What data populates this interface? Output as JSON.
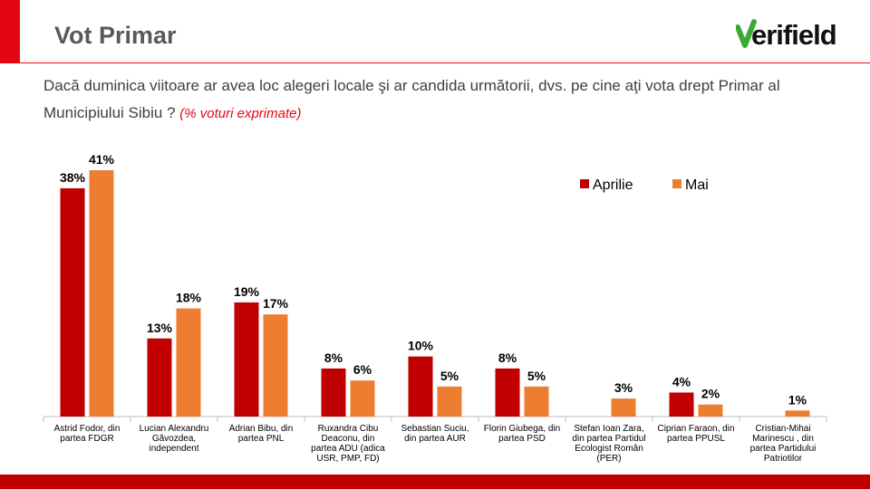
{
  "page": {
    "title": "Vot Primar",
    "question_text": "Dacă duminica viitoare ar avea loc alegeri locale şi ar candida următorii, dvs. pe cine aţi vota drept Primar al Municipiului Sibiu ?",
    "question_note": "(% voturi exprimate)"
  },
  "logo": {
    "text": "verifield",
    "color": "#111111",
    "accent": "#3aaa35"
  },
  "colors": {
    "accent": "#e30613",
    "bottom_bar": "#c00000"
  },
  "chart_data": {
    "type": "bar",
    "categories": [
      [
        "Astrid Fodor, din",
        "partea FDGR"
      ],
      [
        "Lucian Alexandru",
        "Găvozdea,",
        "independent"
      ],
      [
        "Adrian Bibu, din",
        "partea PNL"
      ],
      [
        "Ruxandra Cibu",
        "Deaconu, din",
        "partea ADU (adica",
        "USR, PMP, FD)"
      ],
      [
        "Sebastian Suciu,",
        "din partea AUR"
      ],
      [
        "Florin Giubega, din",
        "partea PSD"
      ],
      [
        "Stefan Ioan Zara,",
        "din partea Partidul",
        "Ecologist Român",
        "(PER)"
      ],
      [
        "Ciprian Faraon, din",
        "partea PPUSL"
      ],
      [
        "Cristian-Mihai",
        "Marinescu , din",
        "partea Partidului",
        "Patriotilor"
      ]
    ],
    "series": [
      {
        "name": "Aprilie",
        "color": "#c00000",
        "values": [
          38,
          13,
          19,
          8,
          10,
          8,
          null,
          4,
          null
        ],
        "labels": [
          "38%",
          "13%",
          "19%",
          "8%",
          "10%",
          "8%",
          "",
          "4%",
          ""
        ]
      },
      {
        "name": "Mai",
        "color": "#ed7d31",
        "values": [
          41,
          18,
          17,
          6,
          5,
          5,
          3,
          2,
          1
        ],
        "labels": [
          "41%",
          "18%",
          "17%",
          "6%",
          "5%",
          "5%",
          "3%",
          "2%",
          "1%"
        ]
      }
    ],
    "ylim": [
      0,
      41
    ],
    "legend_position": "top-right",
    "grid": false
  }
}
